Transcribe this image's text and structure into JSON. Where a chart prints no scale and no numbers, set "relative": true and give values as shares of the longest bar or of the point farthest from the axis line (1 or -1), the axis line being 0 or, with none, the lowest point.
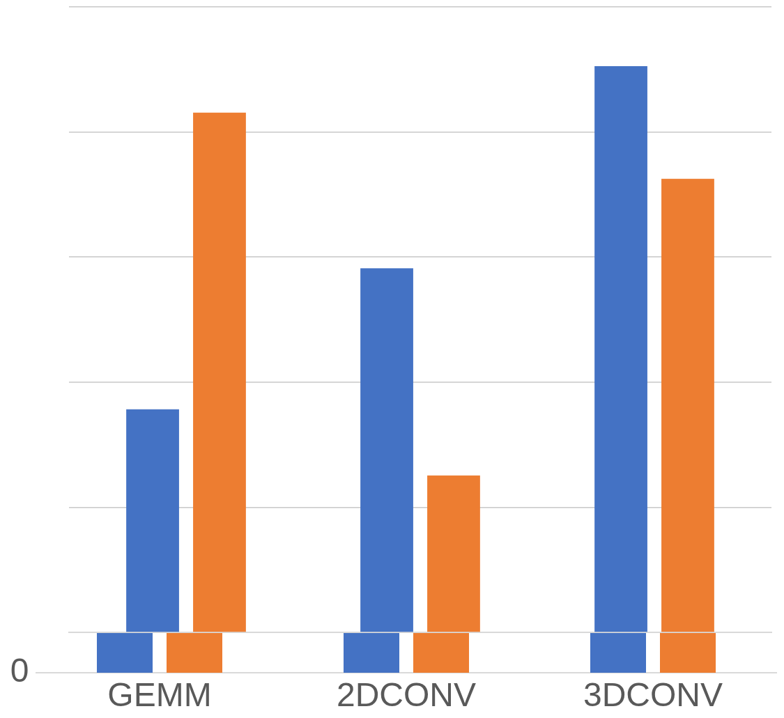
{
  "chart_data": [
    {
      "type": "bar",
      "categories": [
        "GEMM",
        "2DCONV",
        "3DCONV"
      ],
      "relative": true,
      "annotations": [
        "0"
      ],
      "series": [
        {
          "color": "#4472c4",
          "values": [
            1,
            1,
            1
          ]
        },
        {
          "color": "#ed7d31",
          "values": [
            1,
            1,
            1
          ]
        }
      ]
    },
    {
      "type": "bar",
      "categories": [
        null,
        null,
        null
      ],
      "relative": true,
      "grid": "y",
      "series": [
        {
          "color": "#4472c4",
          "values": [
            0.394,
            0.643,
            1
          ]
        },
        {
          "color": "#ed7d31",
          "values": [
            0.918,
            0.277,
            0.801
          ]
        }
      ]
    }
  ]
}
